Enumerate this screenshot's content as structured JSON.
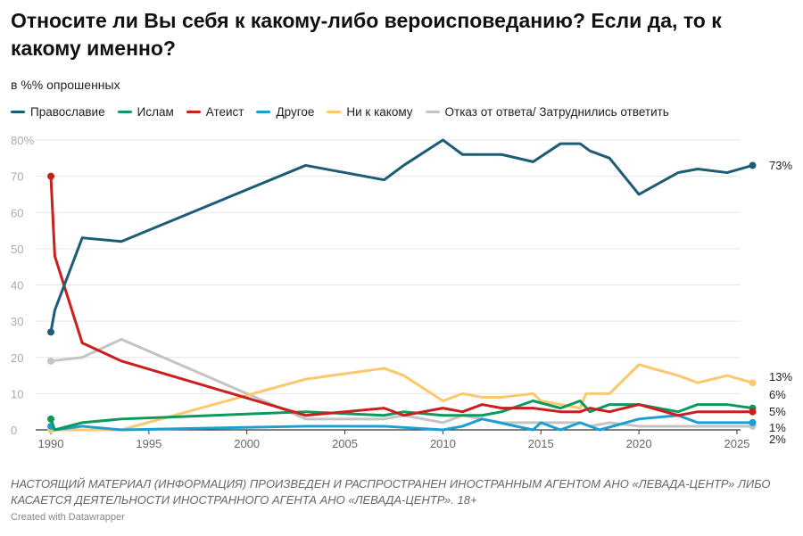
{
  "title": "Относите ли Вы себя к какому-либо вероисповеданию? Если да, то к какому именно?",
  "subtitle": "в %% опрошенных",
  "note": "НАСТОЯЩИЙ МАТЕРИАЛ (ИНФОРМАЦИЯ) ПРОИЗВЕДЕН И РАСПРОСТРАНЕН ИНОСТРАННЫМ АГЕНТОМ АНО «ЛЕВАДА-ЦЕНТР» ЛИБО КАСАЕТСЯ ДЕЯТЕЛЬНОСТИ ИНОСТРАННОГО АГЕНТА АНО «ЛЕВАДА-ЦЕНТР». 18+",
  "credit": "Created with Datawrapper",
  "chart_data": {
    "type": "line",
    "xlim": [
      1990,
      2026
    ],
    "ylim": [
      0,
      80
    ],
    "grid": true,
    "legend": "top",
    "xticks": [
      "1990",
      "1995",
      "2000",
      "2005",
      "2010",
      "2015",
      "2020",
      "2025"
    ],
    "yticks": [
      "0",
      "10",
      "20",
      "30",
      "40",
      "50",
      "60",
      "70",
      "80%"
    ],
    "series": [
      {
        "name": "Православие",
        "color": "#1d5c75",
        "end_label": "73%",
        "points": [
          [
            1990,
            27
          ],
          [
            1990.2,
            33
          ],
          [
            1991.6,
            53
          ],
          [
            1993.6,
            52
          ],
          [
            2003,
            73
          ],
          [
            2007,
            69
          ],
          [
            2008,
            73
          ],
          [
            2010,
            80
          ],
          [
            2011,
            76
          ],
          [
            2013,
            76
          ],
          [
            2014.6,
            74
          ],
          [
            2016,
            79
          ],
          [
            2017,
            79
          ],
          [
            2017.5,
            77
          ],
          [
            2018.5,
            75
          ],
          [
            2020,
            65
          ],
          [
            2022,
            71
          ],
          [
            2023,
            72
          ],
          [
            2024.5,
            71
          ],
          [
            2025.8,
            73
          ]
        ]
      },
      {
        "name": "Ислам",
        "color": "#0a9a5e",
        "end_label": "6%",
        "points": [
          [
            1990,
            3
          ],
          [
            1990.2,
            0
          ],
          [
            1991.6,
            2
          ],
          [
            1993.6,
            3
          ],
          [
            2003,
            5
          ],
          [
            2007,
            4
          ],
          [
            2008,
            5
          ],
          [
            2010,
            4
          ],
          [
            2012,
            4
          ],
          [
            2013,
            5
          ],
          [
            2014.6,
            8
          ],
          [
            2016,
            6
          ],
          [
            2017,
            8
          ],
          [
            2017.5,
            5
          ],
          [
            2018.5,
            7
          ],
          [
            2020,
            7
          ],
          [
            2022,
            5
          ],
          [
            2023,
            7
          ],
          [
            2024.5,
            7
          ],
          [
            2025.8,
            6
          ]
        ]
      },
      {
        "name": "Атеист",
        "color": "#c9201f",
        "end_label": "5%",
        "points": [
          [
            1990,
            70
          ],
          [
            1990.2,
            48
          ],
          [
            1991.6,
            24
          ],
          [
            1993.6,
            19
          ],
          [
            2003,
            4
          ],
          [
            2007,
            6
          ],
          [
            2008,
            4
          ],
          [
            2010,
            6
          ],
          [
            2011,
            5
          ],
          [
            2012,
            7
          ],
          [
            2013,
            6
          ],
          [
            2014.6,
            6
          ],
          [
            2016,
            5
          ],
          [
            2017,
            5
          ],
          [
            2017.5,
            6
          ],
          [
            2018.5,
            5
          ],
          [
            2020,
            7
          ],
          [
            2022,
            4
          ],
          [
            2023,
            5
          ],
          [
            2025.8,
            5
          ]
        ]
      },
      {
        "name": "Другое",
        "color": "#1a9fd4",
        "end_label": "2%",
        "points": [
          [
            1990,
            1
          ],
          [
            1990.2,
            0
          ],
          [
            1991.6,
            1
          ],
          [
            1993.6,
            0
          ],
          [
            2003,
            1
          ],
          [
            2007,
            1
          ],
          [
            2010,
            0
          ],
          [
            2011,
            1
          ],
          [
            2012,
            3
          ],
          [
            2014.6,
            0
          ],
          [
            2015,
            2
          ],
          [
            2016,
            0
          ],
          [
            2017,
            2
          ],
          [
            2018,
            0
          ],
          [
            2020,
            3
          ],
          [
            2022,
            4
          ],
          [
            2023,
            2
          ],
          [
            2025.8,
            2
          ]
        ]
      },
      {
        "name": "Ни к какому",
        "color": "#fdc86d",
        "end_label": "13%",
        "points": [
          [
            1990,
            0
          ],
          [
            1993.6,
            0
          ],
          [
            2003,
            14
          ],
          [
            2007,
            17
          ],
          [
            2008,
            15
          ],
          [
            2010,
            8
          ],
          [
            2011,
            10
          ],
          [
            2012,
            9
          ],
          [
            2013,
            9
          ],
          [
            2014.6,
            10
          ],
          [
            2015,
            8
          ],
          [
            2016,
            7
          ],
          [
            2017,
            6
          ],
          [
            2017.3,
            10
          ],
          [
            2018.5,
            10
          ],
          [
            2020,
            18
          ],
          [
            2022,
            15
          ],
          [
            2023,
            13
          ],
          [
            2024.5,
            15
          ],
          [
            2025.8,
            13
          ]
        ]
      },
      {
        "name": "Отказ от ответа/ Затруднились ответить",
        "color": "#c4c4c4",
        "end_label": "1%",
        "points": [
          [
            1990,
            19
          ],
          [
            1991.6,
            20
          ],
          [
            1993.6,
            25
          ],
          [
            2003,
            3
          ],
          [
            2007,
            3
          ],
          [
            2008,
            4
          ],
          [
            2010,
            2
          ],
          [
            2011,
            4
          ],
          [
            2012,
            3
          ],
          [
            2013,
            2
          ],
          [
            2014.6,
            2
          ],
          [
            2016,
            2
          ],
          [
            2017,
            2
          ],
          [
            2017.5,
            1
          ],
          [
            2018.5,
            2
          ],
          [
            2020,
            1
          ],
          [
            2025.8,
            1
          ]
        ]
      }
    ]
  }
}
